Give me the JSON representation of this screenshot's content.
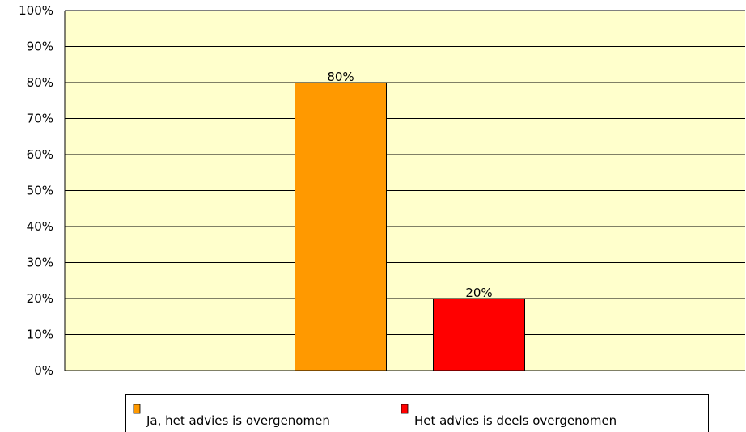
{
  "chart_data": {
    "type": "bar",
    "categories": [
      null
    ],
    "series": [
      {
        "name": "Ja, het advies is overgenomen",
        "color": "#ff9900",
        "values": [
          80
        ],
        "value_labels": [
          "80%"
        ]
      },
      {
        "name": "Het advies is deels overgenomen",
        "color": "#ff0000",
        "values": [
          20
        ],
        "value_labels": [
          "20%"
        ]
      }
    ],
    "ylim": [
      0,
      100
    ],
    "yticks": [
      {
        "value": 0,
        "label": "0%"
      },
      {
        "value": 10,
        "label": "10%"
      },
      {
        "value": 20,
        "label": "20%"
      },
      {
        "value": 30,
        "label": "30%"
      },
      {
        "value": 40,
        "label": "40%"
      },
      {
        "value": 50,
        "label": "50%"
      },
      {
        "value": 60,
        "label": "60%"
      },
      {
        "value": 70,
        "label": "70%"
      },
      {
        "value": 80,
        "label": "80%"
      },
      {
        "value": 90,
        "label": "90%"
      },
      {
        "value": 100,
        "label": "100%"
      }
    ],
    "grid": true,
    "plot_background": "#ffffcc",
    "legend": "bottom"
  }
}
